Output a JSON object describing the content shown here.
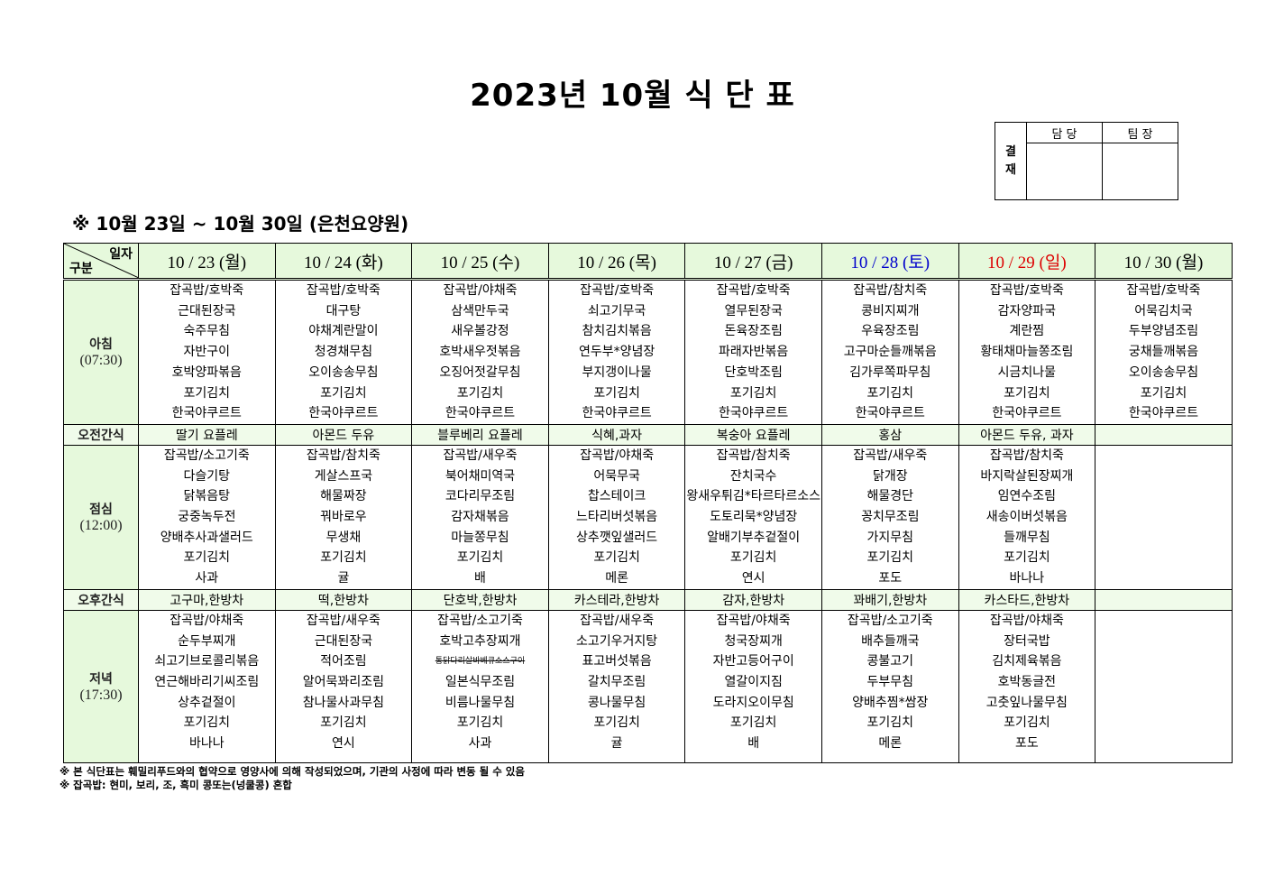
{
  "title": "2023년 10월 식 단 표",
  "approval": {
    "label": "결\n재",
    "label_lines": [
      "결",
      "재"
    ],
    "col1": "담 당",
    "col2": "팀 장"
  },
  "subtitle": "※ 10월 23일 ~ 10월 30일 (은천요양원)",
  "corner": {
    "top": "일자",
    "bottom": "구분"
  },
  "colors": {
    "header_bg": "#e6f9dc",
    "saturday": "#0000cc",
    "sunday": "#dd0000"
  },
  "days": [
    {
      "label": "10 / 23 (월)",
      "color": "#000000"
    },
    {
      "label": "10 / 24 (화)",
      "color": "#000000"
    },
    {
      "label": "10 / 25 (수)",
      "color": "#000000"
    },
    {
      "label": "10 / 26 (목)",
      "color": "#000000"
    },
    {
      "label": "10 / 27 (금)",
      "color": "#000000"
    },
    {
      "label": "10 / 28 (토)",
      "color": "#0000cc"
    },
    {
      "label": "10 / 29 (일)",
      "color": "#dd0000"
    },
    {
      "label": "10 / 30 (월)",
      "color": "#000000"
    }
  ],
  "rows": {
    "breakfast": {
      "label": "아침",
      "time": "(07:30)",
      "items": [
        [
          "잡곡밥/호박죽",
          "근대된장국",
          "숙주무침",
          "자반구이",
          "호박양파볶음",
          "포기김치",
          "한국야쿠르트"
        ],
        [
          "잡곡밥/호박죽",
          "대구탕",
          "야채계란말이",
          "청경채무침",
          "오이송송무침",
          "포기김치",
          "한국야쿠르트"
        ],
        [
          "잡곡밥/야채죽",
          "삼색만두국",
          "새우볼강정",
          "호박새우젓볶음",
          "오징어젓갈무침",
          "포기김치",
          "한국야쿠르트"
        ],
        [
          "잡곡밥/호박죽",
          "쇠고기무국",
          "참치김치볶음",
          "연두부*양념장",
          "부지갱이나물",
          "포기김치",
          "한국야쿠르트"
        ],
        [
          "잡곡밥/호박죽",
          "열무된장국",
          "돈육장조림",
          "파래자반볶음",
          "단호박조림",
          "포기김치",
          "한국야쿠르트"
        ],
        [
          "잡곡밥/참치죽",
          "콩비지찌개",
          "우육장조림",
          "고구마순들깨볶음",
          "김가루쪽파무침",
          "포기김치",
          "한국야쿠르트"
        ],
        [
          "잡곡밥/호박죽",
          "감자양파국",
          "계란찜",
          "황태채마늘쫑조림",
          "시금치나물",
          "포기김치",
          "한국야쿠르트"
        ],
        [
          "잡곡밥/호박죽",
          "어묵김치국",
          "두부양념조림",
          "궁채들깨볶음",
          "오이송송무침",
          "포기김치",
          "한국야쿠르트"
        ]
      ]
    },
    "snack_am": {
      "label": "오전간식",
      "items": [
        "딸기 요플레",
        "아몬드 두유",
        "블루베리 요플레",
        "식혜,과자",
        "복숭아 요플레",
        "홍삼",
        "아몬드 두유, 과자",
        ""
      ]
    },
    "lunch": {
      "label": "점심",
      "time": "(12:00)",
      "items": [
        [
          "잡곡밥/소고기죽",
          "다슬기탕",
          "닭볶음탕",
          "궁중녹두전",
          "양배추사과샐러드",
          "포기김치",
          "사과"
        ],
        [
          "잡곡밥/참치죽",
          "게살스프국",
          "해물짜장",
          "꿔바로우",
          "무생채",
          "포기김치",
          "귤"
        ],
        [
          "잡곡밥/새우죽",
          "북어채미역국",
          "코다리무조림",
          "감자채볶음",
          "마늘쫑무침",
          "포기김치",
          "배"
        ],
        [
          "잡곡밥/야채죽",
          "어묵무국",
          "찹스테이크",
          "느타리버섯볶음",
          "상추깻잎샐러드",
          "포기김치",
          "메론"
        ],
        [
          "잡곡밥/참치죽",
          "잔치국수",
          "왕새우튀김*타르타르소스",
          "도토리묵*양념장",
          "알배기부추겉절이",
          "포기김치",
          "연시"
        ],
        [
          "잡곡밥/새우죽",
          "닭개장",
          "해물경단",
          "꽁치무조림",
          "가지무침",
          "포기김치",
          "포도"
        ],
        [
          "잡곡밥/참치죽",
          "바지락살된장찌개",
          "임연수조림",
          "새송이버섯볶음",
          "들깨무침",
          "포기김치",
          "바나나"
        ],
        []
      ]
    },
    "snack_pm": {
      "label": "오후간식",
      "items": [
        "고구마,한방차",
        "떡,한방차",
        "단호박,한방차",
        "카스테라,한방차",
        "감자,한방차",
        "꽈배기,한방차",
        "카스타드,한방차",
        ""
      ]
    },
    "dinner": {
      "label": "저녁",
      "time": "(17:30)",
      "items": [
        [
          "잡곡밥/야채죽",
          "순두부찌개",
          "쇠고기브로콜리볶음",
          "연근해바리기씨조림",
          "상추겉절이",
          "포기김치",
          "바나나"
        ],
        [
          "잡곡밥/새우죽",
          "근대된장국",
          "적어조림",
          "알어묵꽈리조림",
          "참나물사과무침",
          "포기김치",
          "연시"
        ],
        [
          "잡곡밥/소고기죽",
          "호박고추장찌개",
          "통닭다리살바베큐소스구이",
          "일본식무조림",
          "비름나물무침",
          "포기김치",
          "사과"
        ],
        [
          "잡곡밥/새우죽",
          "소고기우거지탕",
          "표고버섯볶음",
          "갈치무조림",
          "콩나물무침",
          "포기김치",
          "귤"
        ],
        [
          "잡곡밥/야채죽",
          "청국장찌개",
          "자반고등어구이",
          "열갈이지짐",
          "도라지오이무침",
          "포기김치",
          "배"
        ],
        [
          "잡곡밥/소고기죽",
          "배추들깨국",
          "콩불고기",
          "두부무침",
          "양배추찜*쌈장",
          "포기김치",
          "메론"
        ],
        [
          "잡곡밥/야채죽",
          "장터국밥",
          "김치제육볶음",
          "호박동글전",
          "고춧잎나물무침",
          "포기김치",
          "포도"
        ],
        []
      ]
    }
  },
  "struck_items": [
    "통닭다리살바베큐소스구이"
  ],
  "notes": [
    "※ 본 식단표는 훼밀리푸드와의 협약으로 영양사에 의해 작성되었으며, 기관의 사정에 따라 변동 될 수 있음",
    "※ 잡곡밥: 현미, 보리, 조, 흑미 콩또는(넝쿨콩) 혼합"
  ]
}
